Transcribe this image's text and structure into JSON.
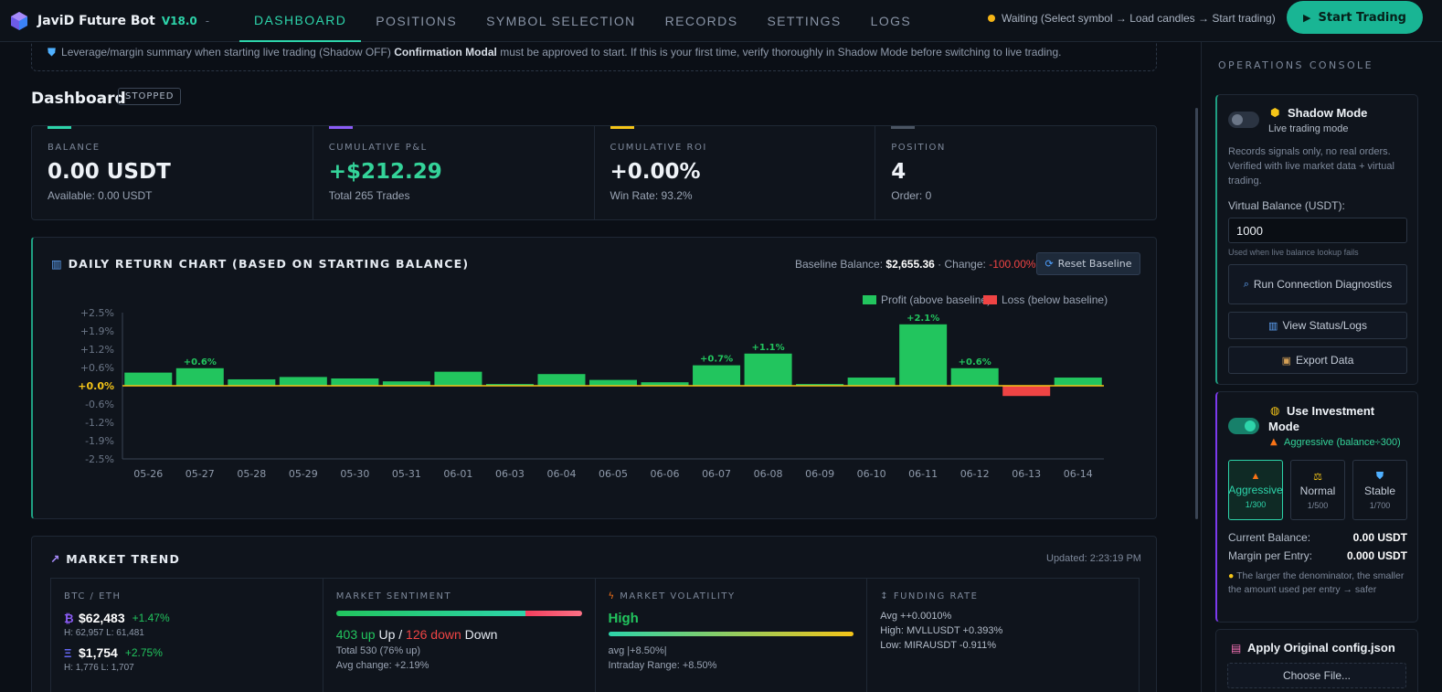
{
  "brand": {
    "name": "JaviD Future Bot",
    "version": "V18.0",
    "dot": "-"
  },
  "nav": {
    "tabs": [
      {
        "label": "DASHBOARD",
        "active": true
      },
      {
        "label": "POSITIONS",
        "active": false
      },
      {
        "label": "SYMBOL SELECTION",
        "active": false
      },
      {
        "label": "RECORDS",
        "active": false
      },
      {
        "label": "SETTINGS",
        "active": false
      },
      {
        "label": "LOGS",
        "active": false
      }
    ]
  },
  "status": {
    "text": "Waiting (Select symbol → Load candles → Start trading)",
    "color": "#f5b516"
  },
  "start_button": {
    "label": "Start Trading",
    "icon": "play-icon"
  },
  "notice": {
    "icon": "shield-icon",
    "text_before": "Leverage/margin summary when starting live trading (Shadow OFF)",
    "strong": "Confirmation Modal",
    "text_after": "must be approved to start. If this is your first time, verify thoroughly in Shadow Mode before switching to live trading."
  },
  "dashboard": {
    "title": "Dashboard",
    "badge": "STOPPED"
  },
  "stats": [
    {
      "label": "BALANCE",
      "value": "0.00 USDT",
      "sub": "Available: 0.00 USDT",
      "accent": "#2dd4aa",
      "value_color": "#eef2f7"
    },
    {
      "label": "CUMULATIVE P&L",
      "value": "+$212.29",
      "sub": "Total 265 Trades",
      "accent": "#8b5cf6",
      "value_color": "#34d399"
    },
    {
      "label": "CUMULATIVE ROI",
      "value": "+0.00%",
      "sub": "Win Rate: 93.2%",
      "accent": "#f5c518",
      "value_color": "#eef2f7"
    },
    {
      "label": "POSITION",
      "value": "4",
      "sub": "Order: 0",
      "accent": "#4b5563",
      "value_color": "#eef2f7"
    }
  ],
  "chart_card": {
    "title": "DAILY RETURN CHART (BASED ON STARTING BALANCE)",
    "title_icon": "bar-chart-icon",
    "baseline_label": "Baseline Balance:",
    "baseline_value": "$2,655.36",
    "change_label": "· Change:",
    "change_value": "-100.00%",
    "reset_label": "Reset Baseline",
    "reset_icon": "refresh-icon"
  },
  "chart_data": {
    "type": "bar",
    "legend": [
      {
        "name": "Profit (above baseline)",
        "color": "#22c55e"
      },
      {
        "name": "Loss (below baseline)",
        "color": "#ef4444"
      }
    ],
    "legend_position": "top-right",
    "categories": [
      "05-26",
      "05-27",
      "05-28",
      "05-29",
      "05-30",
      "05-31",
      "06-01",
      "06-03",
      "06-04",
      "06-05",
      "06-06",
      "06-07",
      "06-08",
      "06-09",
      "06-10",
      "06-11",
      "06-12",
      "06-13",
      "06-14"
    ],
    "values": [
      0.45,
      0.6,
      0.22,
      0.3,
      0.25,
      0.15,
      0.48,
      0.06,
      0.4,
      0.2,
      0.12,
      0.7,
      1.1,
      0.06,
      0.28,
      2.1,
      0.6,
      -0.35,
      0.28
    ],
    "data_labels": [
      "",
      "+0.6%",
      "",
      "",
      "",
      "",
      "",
      "",
      "",
      "",
      "",
      "+0.7%",
      "+1.1%",
      "",
      "",
      "+2.1%",
      "+0.6%",
      "",
      ""
    ],
    "y_ticks": [
      "+2.5%",
      "+1.9%",
      "+1.2%",
      "+0.6%",
      "+0.0%",
      "-0.6%",
      "-1.2%",
      "-1.9%",
      "-2.5%"
    ],
    "ylim": [
      -2.5,
      2.5
    ],
    "grid": false
  },
  "market": {
    "title": "MARKET TREND",
    "title_icon": "trend-chart-icon",
    "updated": "Updated: 2:23:19 PM",
    "btc_eth_label": "BTC / ETH",
    "btc": {
      "symbol": "₿",
      "price": "$62,483",
      "change": "+1.47%",
      "hl": "H: 62,957  L: 61,481"
    },
    "eth": {
      "symbol": "Ξ",
      "price": "$1,754",
      "change": "+2.75%",
      "hl": "H: 1,776  L: 1,707"
    },
    "sentiment_label": "MARKET SENTIMENT",
    "sentiment_up_fraction": 0.76,
    "sentiment_up": "403 up",
    "sentiment_up_word": "Up",
    "sentiment_sep": "/",
    "sentiment_down": "126 down",
    "sentiment_down_word": "Down",
    "sentiment_total": "Total 530 (76% up)",
    "sentiment_avg": "Avg change: +2.19%",
    "volatility_label": "MARKET VOLATILITY",
    "volatility_icon": "lightning-icon",
    "volatility_value": "High",
    "volatility_avg": "avg |+8.50%|",
    "volatility_range": "Intraday Range: +8.50%",
    "funding_label": "FUNDING RATE",
    "funding_icon": "updown-arrow-icon",
    "funding_avg": "Avg ++0.0010%",
    "funding_high": "High: MVLLUSDT +0.393%",
    "funding_low": "Low: MIRAUSDT -0.911%"
  },
  "sidebar": {
    "title": "OPERATIONS CONSOLE",
    "shadow": {
      "enabled": false,
      "icon": "cube-icon",
      "title": "Shadow Mode",
      "subtitle": "Live trading mode",
      "desc": "Records signals only, no real orders. Verified with live market data + virtual trading.",
      "vb_label": "Virtual Balance (USDT):",
      "vb_value": "1000",
      "vb_hint": "Used when live balance lookup fails",
      "diag_label": "Run Connection Diagnostics",
      "diag_icon": "magnifier-icon",
      "status_label": "View Status/Logs",
      "status_icon": "bar-chart-icon",
      "export_label": "Export Data",
      "export_icon": "package-icon"
    },
    "invest": {
      "enabled": true,
      "icon": "money-bag-icon",
      "title": "Use Investment Mode",
      "subtitle": "Aggressive (balance÷300)",
      "subtitle_icon": "fire-icon",
      "modes": [
        {
          "icon": "fire-icon",
          "name": "Aggressive",
          "ratio": "1/300",
          "active": true
        },
        {
          "icon": "scale-icon",
          "name": "Normal",
          "ratio": "1/500",
          "active": false
        },
        {
          "icon": "shield-icon",
          "name": "Stable",
          "ratio": "1/700",
          "active": false
        }
      ],
      "current_balance_label": "Current Balance:",
      "current_balance_value": "0.00 USDT",
      "margin_label": "Margin per Entry:",
      "margin_value": "0.000 USDT",
      "tip_icon": "lightbulb-icon",
      "tip": "The larger the denominator, the smaller the amount used per entry → safer"
    },
    "config": {
      "icon": "clipboard-icon",
      "title": "Apply Original config.json",
      "choose_label": "Choose File..."
    }
  }
}
